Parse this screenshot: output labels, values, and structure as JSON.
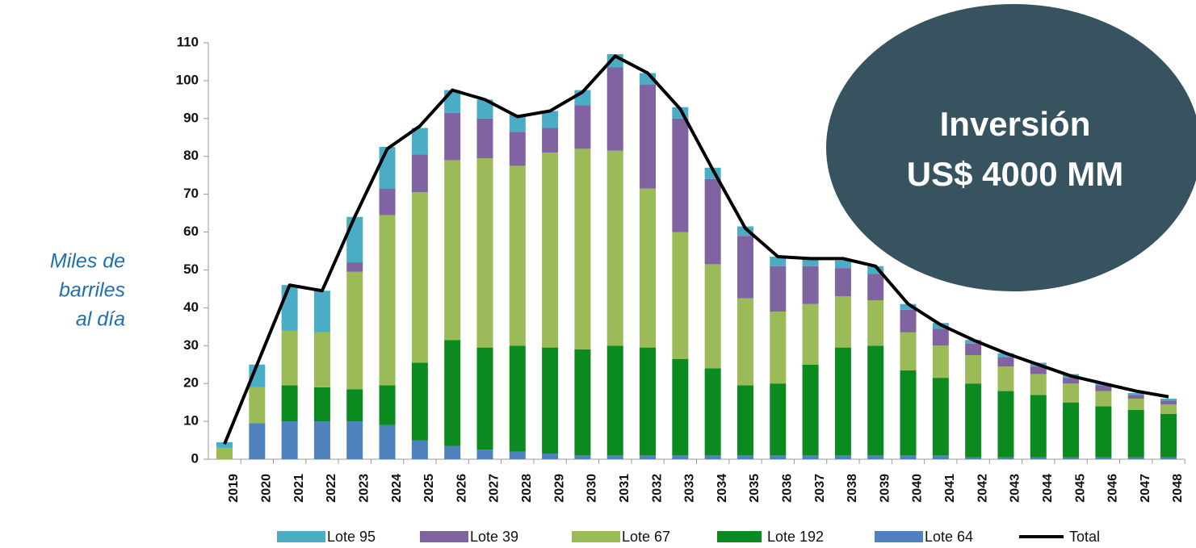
{
  "chart_data": {
    "type": "bar",
    "stacked": true,
    "ylabel": [
      "Miles de",
      "barriles",
      "al día"
    ],
    "annotation": [
      "Inversión",
      "US$ 4000 MM"
    ],
    "categories": [
      "2019",
      "2020",
      "2021",
      "2022",
      "2023",
      "2024",
      "2025",
      "2026",
      "2027",
      "2028",
      "2029",
      "2030",
      "2031",
      "2032",
      "2033",
      "2034",
      "2035",
      "2036",
      "2037",
      "2038",
      "2039",
      "2040",
      "2041",
      "2042",
      "2043",
      "2044",
      "2045",
      "2046",
      "2047",
      "2048"
    ],
    "series": [
      {
        "name": "Lote 95",
        "color": "#4bacc6",
        "values": [
          1.5,
          6,
          12,
          11,
          12,
          11,
          7,
          6,
          5,
          4.5,
          4.5,
          4,
          3.5,
          3,
          3,
          3,
          2.5,
          2.5,
          2,
          2,
          2,
          1.5,
          1.5,
          1,
          1,
          1,
          1,
          0.5,
          0.5,
          0.5
        ]
      },
      {
        "name": "Lote 39",
        "color": "#8064a2",
        "values": [
          0,
          0,
          0,
          0,
          2.5,
          7,
          10,
          12.5,
          10.5,
          9,
          6.5,
          11.5,
          22,
          27.5,
          30,
          22.5,
          16.5,
          12,
          10,
          7.5,
          7,
          6,
          4.5,
          3,
          2.5,
          2,
          1.5,
          1.5,
          1,
          1
        ]
      },
      {
        "name": "Lote 67",
        "color": "#9bbb59",
        "values": [
          3,
          9.5,
          14.5,
          14.5,
          31,
          45,
          45,
          47.5,
          50,
          47.5,
          51.5,
          53,
          51.5,
          42,
          33.5,
          27.5,
          23,
          19,
          16,
          13.5,
          12,
          10,
          8.5,
          7.5,
          6.5,
          5.5,
          5,
          4,
          3,
          2.5
        ]
      },
      {
        "name": "Lote 192",
        "color": "#0b8a1f",
        "values": [
          0,
          0,
          9.5,
          9,
          8.5,
          10.5,
          20.5,
          28,
          27,
          28,
          28,
          28,
          29,
          28.5,
          25.5,
          23,
          18.5,
          19,
          24,
          28.5,
          29,
          22.5,
          20.5,
          19.5,
          17.5,
          16.5,
          14.5,
          13.5,
          12.5,
          11.5
        ]
      },
      {
        "name": "Lote 64",
        "color": "#4f81bd",
        "values": [
          0,
          9.5,
          10,
          10,
          10,
          9,
          5,
          3.5,
          2.5,
          2,
          1.5,
          1,
          1,
          1,
          1,
          1,
          1,
          1,
          1,
          1,
          1,
          1,
          1,
          0.5,
          0.5,
          0.5,
          0.5,
          0.5,
          0.5,
          0.5
        ]
      },
      {
        "name": "Total",
        "color": "#000000",
        "type": "line",
        "values": [
          4,
          25,
          46,
          44.5,
          64,
          82,
          88,
          97.5,
          95,
          90.5,
          92,
          97,
          106.5,
          102,
          92.5,
          76.5,
          61,
          53.5,
          53,
          53,
          51,
          41,
          35.5,
          31.5,
          28,
          25,
          22,
          20,
          18,
          16.5
        ]
      }
    ],
    "ylim": [
      0,
      110
    ],
    "yticks": [
      0,
      10,
      20,
      30,
      40,
      50,
      60,
      70,
      80,
      90,
      100,
      110
    ]
  }
}
